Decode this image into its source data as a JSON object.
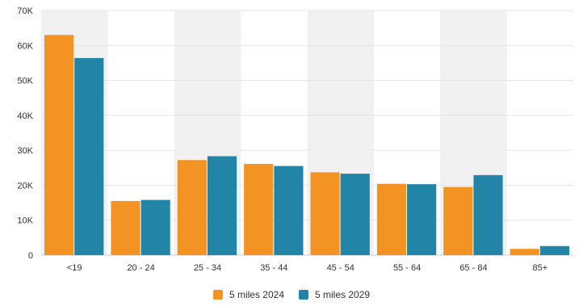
{
  "chart_data": {
    "type": "bar",
    "title": "",
    "xlabel": "",
    "ylabel": "",
    "categories": [
      "<19",
      "20 - 24",
      "25 - 34",
      "35 - 44",
      "45 - 54",
      "55 - 64",
      "65 - 84",
      "85+"
    ],
    "series": [
      {
        "name": "5 miles 2024",
        "color": "#F39323",
        "values": [
          63000,
          15500,
          27200,
          26100,
          23700,
          20400,
          19500,
          1800
        ]
      },
      {
        "name": "5 miles 2029",
        "color": "#2285A8",
        "values": [
          56400,
          15800,
          28300,
          25500,
          23300,
          20300,
          22900,
          2600
        ]
      }
    ],
    "ylim": [
      0,
      70000
    ],
    "yticks": [
      0,
      10000,
      20000,
      30000,
      40000,
      50000,
      60000,
      70000
    ],
    "ytick_labels": [
      "0",
      "10K",
      "20K",
      "30K",
      "40K",
      "50K",
      "60K",
      "70K"
    ],
    "grid": true,
    "alternating_band_color": "#F1F1F1",
    "legend_position": "bottom-center"
  }
}
